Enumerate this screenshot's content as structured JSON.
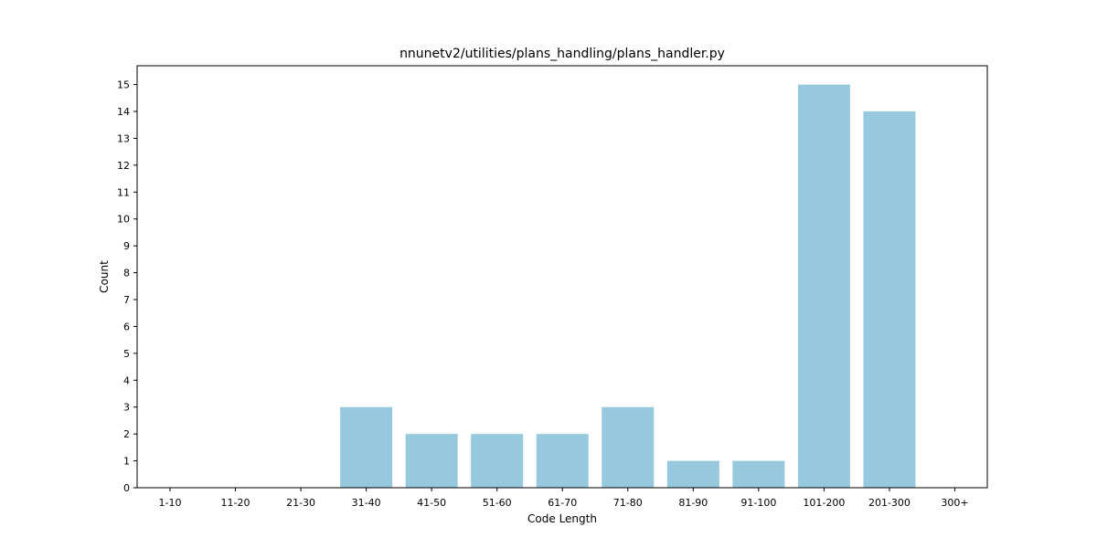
{
  "chart_data": {
    "type": "bar",
    "title": "nnunetv2/utilities/plans_handling/plans_handler.py",
    "xlabel": "Code Length",
    "ylabel": "Count",
    "categories": [
      "1-10",
      "11-20",
      "21-30",
      "31-40",
      "41-50",
      "51-60",
      "61-70",
      "71-80",
      "81-90",
      "91-100",
      "101-200",
      "201-300",
      "300+"
    ],
    "values": [
      0,
      0,
      0,
      3,
      2,
      2,
      2,
      3,
      1,
      1,
      15,
      14,
      0
    ],
    "yticks": [
      0,
      1,
      2,
      3,
      4,
      5,
      6,
      7,
      8,
      9,
      10,
      11,
      12,
      13,
      14,
      15
    ],
    "ylim": [
      0,
      15.7
    ],
    "grid": false,
    "bar_color": "#96c9dd"
  }
}
